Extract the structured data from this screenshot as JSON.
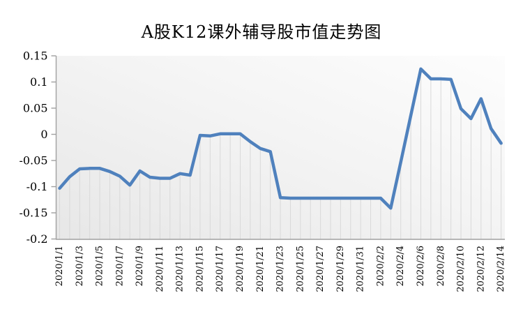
{
  "chart_data": {
    "type": "line",
    "title": "A股K12课外辅导股市值走势图",
    "xlabel": "",
    "ylabel": "",
    "ylim": [
      -0.2,
      0.15
    ],
    "grid": "vertical drop lines at every data point",
    "legend_position": "none",
    "series_color": "#4F81BD",
    "dropline_color": "#D9D9D9",
    "axis_color": "#A0A0A0",
    "label_color": "#000000",
    "x": [
      "2020/1/1",
      "2020/1/2",
      "2020/1/3",
      "2020/1/4",
      "2020/1/5",
      "2020/1/6",
      "2020/1/7",
      "2020/1/8",
      "2020/1/9",
      "2020/1/10",
      "2020/1/11",
      "2020/1/12",
      "2020/1/13",
      "2020/1/14",
      "2020/1/15",
      "2020/1/16",
      "2020/1/17",
      "2020/1/18",
      "2020/1/19",
      "2020/1/20",
      "2020/1/21",
      "2020/1/22",
      "2020/1/23",
      "2020/1/24",
      "2020/1/25",
      "2020/1/26",
      "2020/1/27",
      "2020/1/28",
      "2020/1/29",
      "2020/1/30",
      "2020/1/31",
      "2020/2/1",
      "2020/2/2",
      "2020/2/3",
      "2020/2/4",
      "2020/2/5",
      "2020/2/6",
      "2020/2/7",
      "2020/2/8",
      "2020/2/9",
      "2020/2/10",
      "2020/2/11",
      "2020/2/12",
      "2020/2/13",
      "2020/2/14"
    ],
    "values": [
      -0.103,
      -0.081,
      -0.066,
      -0.065,
      -0.065,
      -0.071,
      -0.08,
      -0.097,
      -0.07,
      -0.082,
      -0.084,
      -0.084,
      -0.075,
      -0.078,
      -0.002,
      -0.003,
      0.001,
      0.001,
      0.001,
      -0.014,
      -0.027,
      -0.033,
      -0.121,
      -0.122,
      -0.122,
      -0.122,
      -0.122,
      -0.122,
      -0.122,
      -0.122,
      -0.122,
      -0.122,
      -0.122,
      -0.141,
      -0.053,
      0.036,
      0.125,
      0.106,
      0.106,
      0.105,
      0.049,
      0.03,
      0.068,
      0.011,
      -0.017
    ],
    "x_tick_labels": [
      "2020/1/1",
      "2020/1/3",
      "2020/1/5",
      "2020/1/7",
      "2020/1/9",
      "2020/1/11",
      "2020/1/13",
      "2020/1/15",
      "2020/1/17",
      "2020/1/19",
      "2020/1/21",
      "2020/1/23",
      "2020/1/25",
      "2020/1/27",
      "2020/1/29",
      "2020/1/31",
      "2020/2/2",
      "2020/2/4",
      "2020/2/6",
      "2020/2/8",
      "2020/2/10",
      "2020/2/12",
      "2020/2/14"
    ],
    "x_tick_every_n_points": 2,
    "y_ticks": [
      0.15,
      0.1,
      0.05,
      0,
      -0.05,
      -0.1,
      -0.15,
      -0.2
    ],
    "y_tick_labels": [
      "0.15",
      "0.1",
      "0.05",
      "0",
      "-0.05",
      "-0.1",
      "-0.15",
      "-0.2"
    ]
  }
}
